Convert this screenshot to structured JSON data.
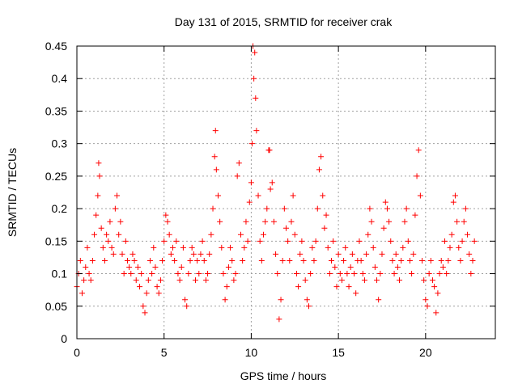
{
  "chart_data": {
    "type": "scatter",
    "title": "Day 131 of 2015, SRMTID for receiver crak",
    "xlabel": "GPS time / hours",
    "ylabel": "SRMTID / TECUs",
    "xlim": [
      0,
      24
    ],
    "ylim": [
      0,
      0.45
    ],
    "xticks": [
      0,
      5,
      10,
      15,
      20
    ],
    "yticks": [
      0,
      0.05,
      0.1,
      0.15,
      0.2,
      0.25,
      0.3,
      0.35,
      0.4,
      0.45
    ],
    "xtick_labels": [
      "0",
      "5",
      "10",
      "15",
      "20"
    ],
    "ytick_labels": [
      "0",
      "0.05",
      "0.1",
      "0.15",
      "0.2",
      "0.25",
      "0.3",
      "0.35",
      "0.4",
      "0.45"
    ],
    "grid": true,
    "marker": "+",
    "color": "#ff0000",
    "series": [
      {
        "name": "SRMTID",
        "x": [
          0.0,
          0.1,
          0.2,
          0.3,
          0.4,
          0.5,
          0.6,
          0.7,
          0.8,
          0.9,
          1.0,
          1.1,
          1.2,
          1.25,
          1.3,
          1.4,
          1.5,
          1.6,
          1.7,
          1.8,
          1.9,
          2.0,
          2.1,
          2.2,
          2.3,
          2.4,
          2.5,
          2.6,
          2.7,
          2.8,
          2.9,
          3.0,
          3.1,
          3.2,
          3.3,
          3.4,
          3.5,
          3.6,
          3.7,
          3.8,
          3.9,
          4.0,
          4.1,
          4.2,
          4.3,
          4.4,
          4.5,
          4.6,
          4.7,
          4.8,
          4.9,
          5.0,
          5.1,
          5.2,
          5.3,
          5.4,
          5.5,
          5.6,
          5.7,
          5.8,
          5.9,
          6.0,
          6.1,
          6.2,
          6.3,
          6.4,
          6.5,
          6.6,
          6.7,
          6.8,
          6.9,
          7.0,
          7.1,
          7.2,
          7.3,
          7.4,
          7.5,
          7.6,
          7.7,
          7.8,
          7.9,
          7.95,
          8.0,
          8.1,
          8.2,
          8.3,
          8.4,
          8.5,
          8.6,
          8.7,
          8.8,
          8.9,
          9.0,
          9.1,
          9.2,
          9.3,
          9.4,
          9.5,
          9.6,
          9.7,
          9.8,
          9.9,
          10.0,
          10.05,
          10.1,
          10.15,
          10.2,
          10.25,
          10.3,
          10.4,
          10.5,
          10.6,
          10.7,
          10.8,
          10.9,
          11.0,
          11.05,
          11.1,
          11.2,
          11.3,
          11.4,
          11.5,
          11.6,
          11.7,
          11.8,
          11.9,
          12.0,
          12.1,
          12.2,
          12.3,
          12.4,
          12.5,
          12.6,
          12.7,
          12.8,
          12.9,
          13.0,
          13.1,
          13.2,
          13.3,
          13.4,
          13.5,
          13.6,
          13.7,
          13.8,
          13.9,
          14.0,
          14.1,
          14.2,
          14.3,
          14.4,
          14.5,
          14.6,
          14.7,
          14.8,
          14.9,
          15.0,
          15.1,
          15.2,
          15.3,
          15.4,
          15.5,
          15.6,
          15.7,
          15.8,
          15.9,
          16.0,
          16.1,
          16.2,
          16.3,
          16.4,
          16.5,
          16.6,
          16.7,
          16.8,
          16.9,
          17.0,
          17.1,
          17.2,
          17.3,
          17.4,
          17.5,
          17.6,
          17.7,
          17.8,
          17.9,
          18.0,
          18.1,
          18.2,
          18.3,
          18.4,
          18.5,
          18.6,
          18.7,
          18.8,
          18.9,
          19.0,
          19.1,
          19.2,
          19.3,
          19.4,
          19.5,
          19.6,
          19.7,
          19.8,
          19.9,
          20.0,
          20.1,
          20.2,
          20.3,
          20.4,
          20.5,
          20.6,
          20.7,
          20.8,
          20.9,
          21.0,
          21.1,
          21.2,
          21.3,
          21.4,
          21.5,
          21.6,
          21.7,
          21.8,
          21.9,
          22.0,
          22.1,
          22.2,
          22.3,
          22.4,
          22.5,
          22.6,
          22.7,
          22.8
        ],
        "y": [
          0.08,
          0.1,
          0.12,
          0.07,
          0.09,
          0.11,
          0.14,
          0.1,
          0.09,
          0.12,
          0.16,
          0.19,
          0.22,
          0.27,
          0.25,
          0.17,
          0.14,
          0.12,
          0.16,
          0.15,
          0.18,
          0.14,
          0.13,
          0.2,
          0.22,
          0.16,
          0.18,
          0.13,
          0.1,
          0.15,
          0.12,
          0.11,
          0.1,
          0.13,
          0.12,
          0.09,
          0.11,
          0.08,
          0.1,
          0.05,
          0.04,
          0.07,
          0.09,
          0.12,
          0.1,
          0.14,
          0.11,
          0.08,
          0.07,
          0.09,
          0.12,
          0.15,
          0.19,
          0.18,
          0.16,
          0.13,
          0.14,
          0.12,
          0.15,
          0.1,
          0.09,
          0.11,
          0.14,
          0.06,
          0.05,
          0.1,
          0.12,
          0.14,
          0.13,
          0.09,
          0.12,
          0.1,
          0.13,
          0.15,
          0.12,
          0.09,
          0.1,
          0.13,
          0.16,
          0.2,
          0.28,
          0.32,
          0.26,
          0.22,
          0.18,
          0.14,
          0.1,
          0.06,
          0.08,
          0.11,
          0.14,
          0.12,
          0.09,
          0.1,
          0.25,
          0.27,
          0.16,
          0.12,
          0.14,
          0.18,
          0.15,
          0.21,
          0.24,
          0.3,
          0.45,
          0.4,
          0.44,
          0.37,
          0.32,
          0.22,
          0.15,
          0.12,
          0.16,
          0.18,
          0.2,
          0.29,
          0.29,
          0.23,
          0.24,
          0.18,
          0.13,
          0.1,
          0.03,
          0.06,
          0.12,
          0.2,
          0.17,
          0.15,
          0.12,
          0.18,
          0.22,
          0.16,
          0.1,
          0.08,
          0.13,
          0.15,
          0.12,
          0.09,
          0.06,
          0.05,
          0.1,
          0.14,
          0.12,
          0.15,
          0.2,
          0.26,
          0.28,
          0.22,
          0.17,
          0.19,
          0.14,
          0.1,
          0.12,
          0.15,
          0.11,
          0.08,
          0.13,
          0.1,
          0.09,
          0.12,
          0.14,
          0.1,
          0.08,
          0.11,
          0.13,
          0.1,
          0.07,
          0.12,
          0.15,
          0.12,
          0.1,
          0.09,
          0.13,
          0.16,
          0.2,
          0.18,
          0.14,
          0.11,
          0.09,
          0.06,
          0.1,
          0.13,
          0.17,
          0.21,
          0.2,
          0.18,
          0.15,
          0.12,
          0.1,
          0.13,
          0.11,
          0.09,
          0.12,
          0.14,
          0.18,
          0.2,
          0.15,
          0.12,
          0.1,
          0.13,
          0.19,
          0.25,
          0.29,
          0.22,
          0.12,
          0.09,
          0.06,
          0.05,
          0.1,
          0.12,
          0.09,
          0.08,
          0.04,
          0.07,
          0.1,
          0.12,
          0.11,
          0.15,
          0.1,
          0.12,
          0.14,
          0.16,
          0.21,
          0.22,
          0.18,
          0.14,
          0.12,
          0.15,
          0.18,
          0.2,
          0.16,
          0.13,
          0.1,
          0.12,
          0.15
        ]
      }
    ]
  }
}
